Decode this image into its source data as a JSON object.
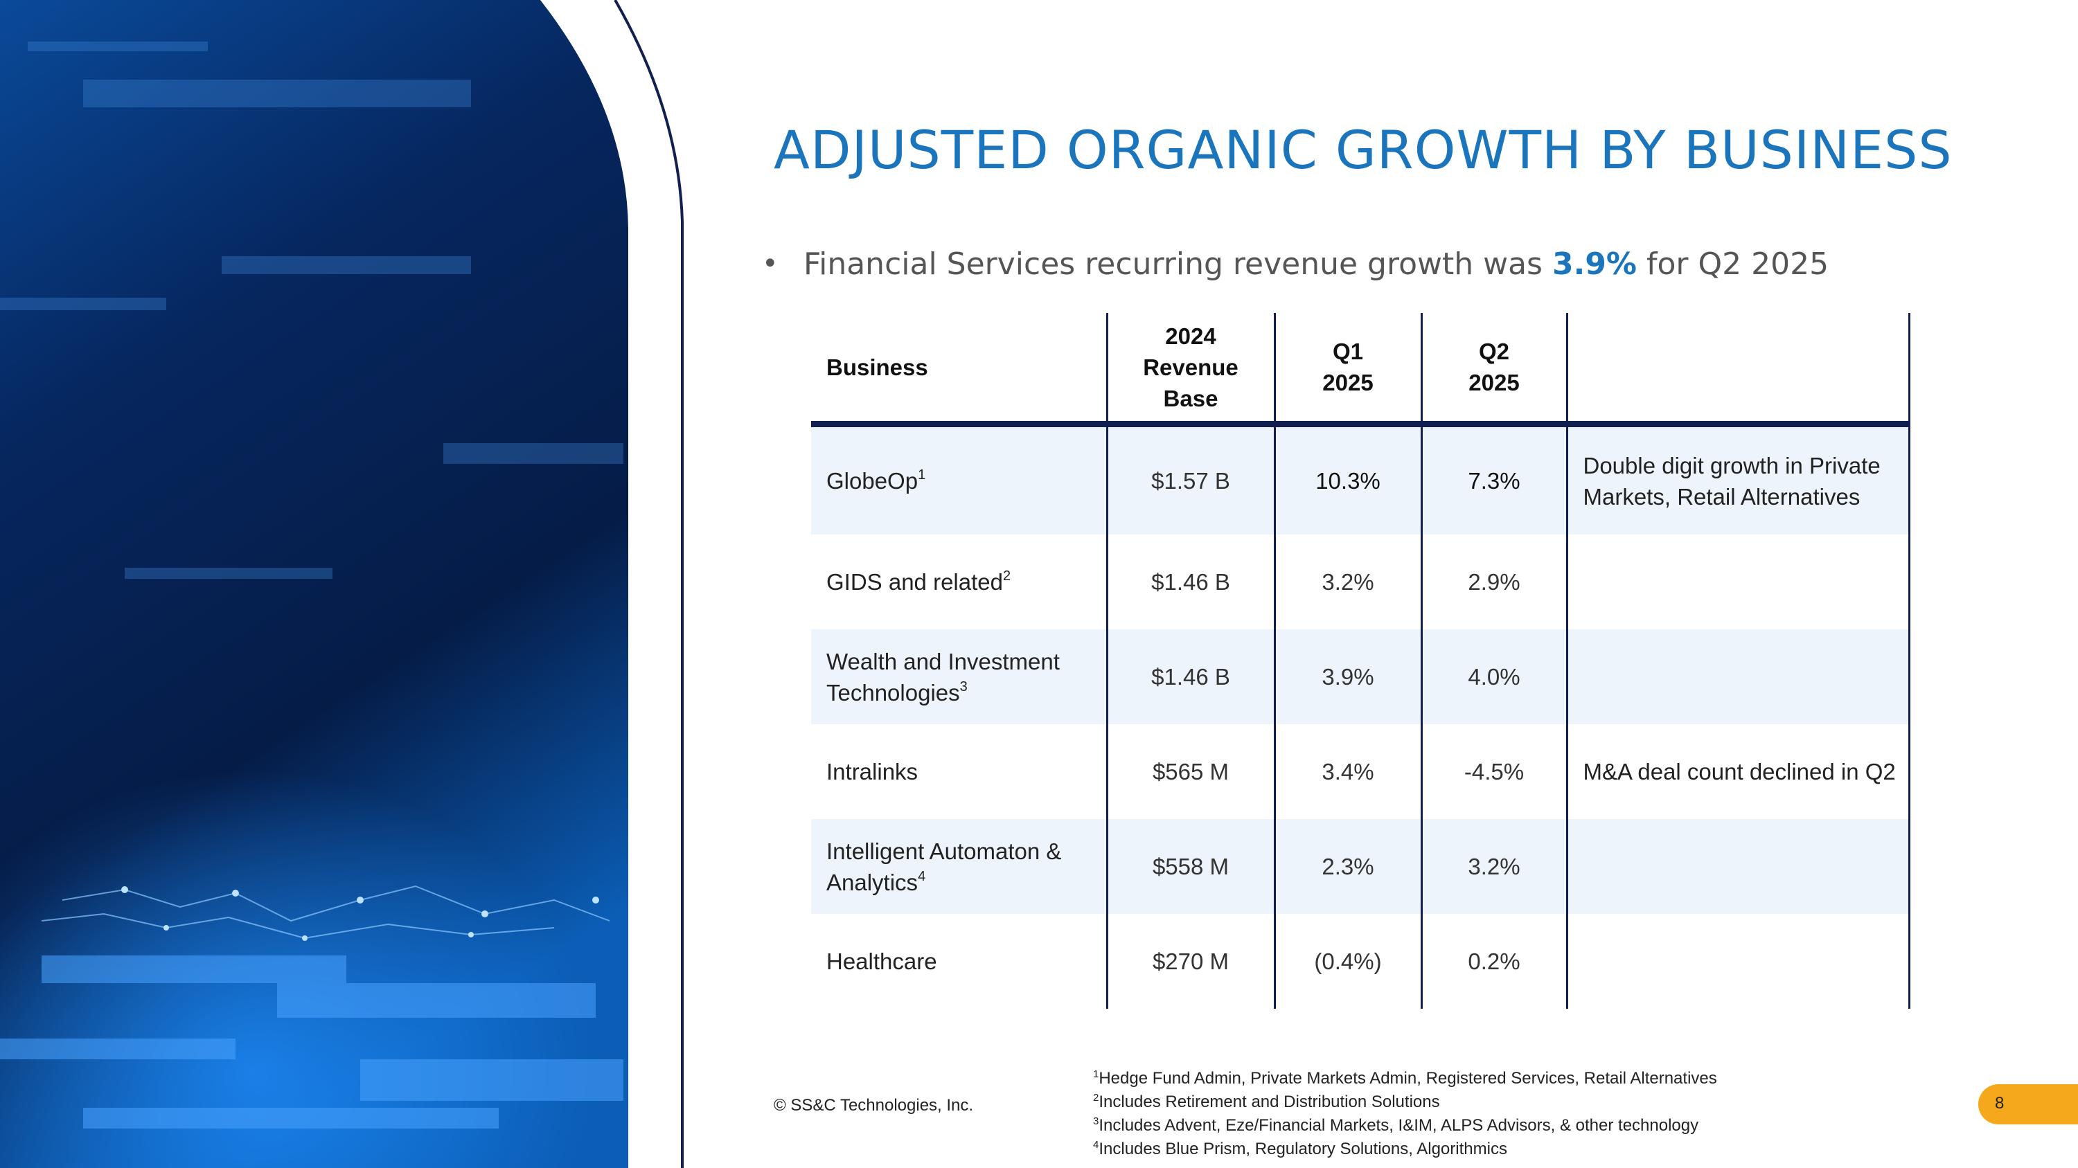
{
  "title": "ADJUSTED ORGANIC GROWTH BY BUSINESS",
  "bullet": {
    "prefix": "Financial Services recurring revenue growth was ",
    "highlight": "3.9%",
    "suffix": " for Q2 2025"
  },
  "table": {
    "headers": {
      "business": "Business",
      "base_line1": "2024",
      "base_line2": "Revenue",
      "base_line3": "Base",
      "q1_line1": "Q1",
      "q1_line2": "2025",
      "q2_line1": "Q2",
      "q2_line2": "2025",
      "notes": ""
    },
    "rows": [
      {
        "business": "GlobeOp",
        "sup": "1",
        "base": "$1.57 B",
        "q1": "10.3%",
        "q2": "7.3%",
        "note": "Double digit growth in Private Markets, Retail Alternatives"
      },
      {
        "business": "GIDS and related",
        "sup": "2",
        "base": "$1.46 B",
        "q1": "3.2%",
        "q2": "2.9%",
        "note": ""
      },
      {
        "business": "Wealth and Investment Technologies",
        "sup": "3",
        "base": "$1.46 B",
        "q1": "3.9%",
        "q2": "4.0%",
        "note": ""
      },
      {
        "business": "Intralinks",
        "sup": "",
        "base": "$565 M",
        "q1": "3.4%",
        "q2": "-4.5%",
        "note": "M&A deal count declined in Q2"
      },
      {
        "business": "Intelligent Automaton & Analytics",
        "sup": "4",
        "base": "$558 M",
        "q1": "2.3%",
        "q2": "3.2%",
        "note": ""
      },
      {
        "business": "Healthcare",
        "sup": "",
        "base": "$270 M",
        "q1": "(0.4%)",
        "q2": "0.2%",
        "note": ""
      }
    ]
  },
  "copyright": "© SS&C Technologies, Inc.",
  "footnotes": [
    {
      "num": "1",
      "text": "Hedge Fund Admin, Private Markets Admin, Registered Services, Retail Alternatives"
    },
    {
      "num": "2",
      "text": "Includes Retirement and Distribution Solutions"
    },
    {
      "num": "3",
      "text": "Includes Advent, Eze/Financial Markets, I&IM, ALPS Advisors, & other technology"
    },
    {
      "num": "4",
      "text": "Includes Blue Prism, Regulatory Solutions, Algorithmics"
    }
  ],
  "page_number": "8",
  "colors": {
    "accent": "#1b75bc",
    "rule": "#12204f",
    "shade": "#edf4fc",
    "tab": "#f6a81c"
  }
}
